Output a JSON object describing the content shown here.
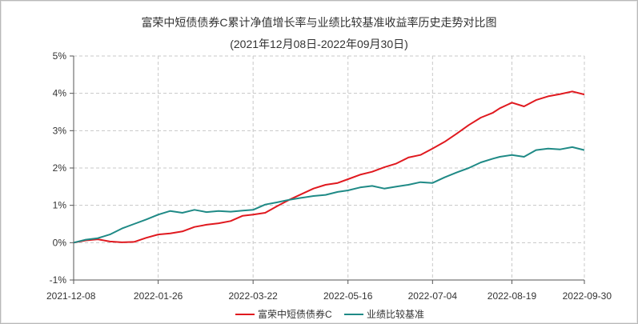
{
  "chart_data": {
    "type": "line",
    "title": "富荣中短债债券C累计净值增长率与业绩比较基准收益率历史走势对比图",
    "subtitle": "(2021年12月08日-2022年09月30日)",
    "xlabel": "",
    "ylabel": "",
    "x_ticks": [
      "2021-12-08",
      "2022-01-26",
      "2022-03-22",
      "2022-05-16",
      "2022-07-04",
      "2022-08-19",
      "2022-09-30"
    ],
    "y_ticks": [
      "-1%",
      "0%",
      "1%",
      "2%",
      "3%",
      "4%",
      "5%"
    ],
    "ylim": [
      -1,
      5
    ],
    "xlim": [
      "2021-12-08",
      "2022-09-30"
    ],
    "grid": true,
    "legend_position": "bottom",
    "series": [
      {
        "name": "富荣中短债债券C",
        "color": "#e0191f",
        "x": [
          "2021-12-08",
          "2021-12-15",
          "2021-12-22",
          "2021-12-29",
          "2022-01-05",
          "2022-01-12",
          "2022-01-19",
          "2022-01-26",
          "2022-02-02",
          "2022-02-09",
          "2022-02-16",
          "2022-02-23",
          "2022-03-02",
          "2022-03-09",
          "2022-03-16",
          "2022-03-22",
          "2022-03-29",
          "2022-04-05",
          "2022-04-12",
          "2022-04-19",
          "2022-04-26",
          "2022-05-03",
          "2022-05-10",
          "2022-05-16",
          "2022-05-23",
          "2022-05-30",
          "2022-06-06",
          "2022-06-13",
          "2022-06-20",
          "2022-06-27",
          "2022-07-04",
          "2022-07-11",
          "2022-07-18",
          "2022-07-25",
          "2022-08-01",
          "2022-08-08",
          "2022-08-12",
          "2022-08-19",
          "2022-08-26",
          "2022-09-02",
          "2022-09-09",
          "2022-09-16",
          "2022-09-23",
          "2022-09-30"
        ],
        "values": [
          0.0,
          0.06,
          0.09,
          0.03,
          0.01,
          0.02,
          0.13,
          0.22,
          0.25,
          0.3,
          0.42,
          0.48,
          0.52,
          0.58,
          0.72,
          0.75,
          0.8,
          0.98,
          1.15,
          1.3,
          1.45,
          1.55,
          1.6,
          1.7,
          1.82,
          1.9,
          2.02,
          2.12,
          2.28,
          2.35,
          2.52,
          2.7,
          2.92,
          3.15,
          3.35,
          3.48,
          3.6,
          3.75,
          3.65,
          3.82,
          3.92,
          3.98,
          4.05,
          3.97
        ]
      },
      {
        "name": "业绩比较基准",
        "color": "#1f8a86",
        "x": [
          "2021-12-08",
          "2021-12-15",
          "2021-12-22",
          "2021-12-29",
          "2022-01-05",
          "2022-01-12",
          "2022-01-19",
          "2022-01-26",
          "2022-02-02",
          "2022-02-09",
          "2022-02-16",
          "2022-02-23",
          "2022-03-02",
          "2022-03-09",
          "2022-03-16",
          "2022-03-22",
          "2022-03-29",
          "2022-04-05",
          "2022-04-12",
          "2022-04-19",
          "2022-04-26",
          "2022-05-03",
          "2022-05-10",
          "2022-05-16",
          "2022-05-23",
          "2022-05-30",
          "2022-06-06",
          "2022-06-13",
          "2022-06-20",
          "2022-06-27",
          "2022-07-04",
          "2022-07-11",
          "2022-07-18",
          "2022-07-25",
          "2022-08-01",
          "2022-08-08",
          "2022-08-12",
          "2022-08-19",
          "2022-08-26",
          "2022-09-02",
          "2022-09-09",
          "2022-09-16",
          "2022-09-23",
          "2022-09-30"
        ],
        "values": [
          0.0,
          0.08,
          0.12,
          0.22,
          0.38,
          0.5,
          0.62,
          0.75,
          0.85,
          0.8,
          0.88,
          0.82,
          0.85,
          0.83,
          0.86,
          0.88,
          1.02,
          1.08,
          1.15,
          1.2,
          1.25,
          1.28,
          1.36,
          1.4,
          1.48,
          1.52,
          1.45,
          1.5,
          1.55,
          1.62,
          1.6,
          1.75,
          1.88,
          2.0,
          2.15,
          2.25,
          2.3,
          2.35,
          2.3,
          2.48,
          2.52,
          2.5,
          2.56,
          2.48
        ]
      }
    ]
  }
}
